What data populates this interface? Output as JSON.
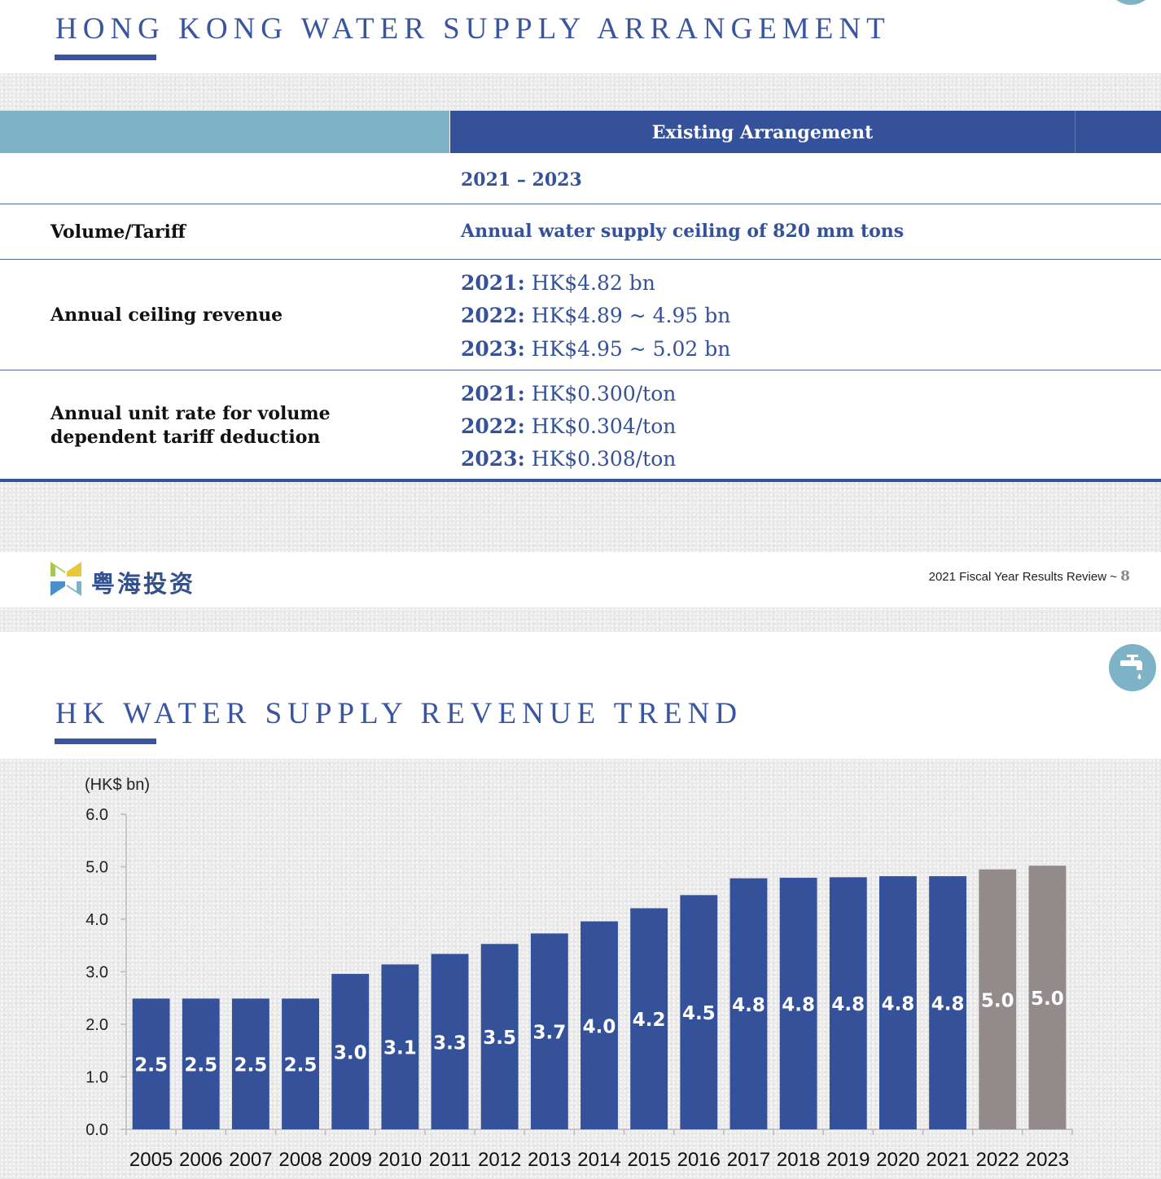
{
  "slide1": {
    "title": "HONG KONG WATER SUPPLY ARRANGEMENT",
    "table": {
      "header": "Existing Arrangement",
      "period": "2021 – 2023",
      "rows": [
        {
          "label": "Volume/Tariff",
          "value": "Annual water supply ceiling of 820 mm tons"
        },
        {
          "label": "Annual ceiling revenue",
          "lines": [
            {
              "year": "2021:",
              "value": "HK$4.82 bn"
            },
            {
              "year": "2022:",
              "value": "HK$4.89 ~ 4.95 bn"
            },
            {
              "year": "2023:",
              "value": "HK$4.95 ~ 5.02 bn"
            }
          ]
        },
        {
          "label_line1": "Annual unit rate for volume",
          "label_line2": "dependent tariff deduction",
          "lines": [
            {
              "year": "2021:",
              "value": "HK$0.300/ton"
            },
            {
              "year": "2022:",
              "value": "HK$0.304/ton"
            },
            {
              "year": "2023:",
              "value": "HK$0.308/ton"
            }
          ]
        }
      ]
    },
    "footer": {
      "brand": "粤海投资",
      "note": "2021 Fiscal Year Results Review ~ ",
      "page": "8"
    }
  },
  "slide2": {
    "title": "HK WATER SUPPLY REVENUE TREND",
    "icon": "water-tap-icon"
  },
  "colors": {
    "navy": "#34519a",
    "teal": "#7eb2c7",
    "bar_actual": "#34519a",
    "bar_projected": "#938b8b"
  },
  "chart_data": {
    "type": "bar",
    "ylabel": "(HK$ bn)",
    "ylim": [
      0,
      6.0
    ],
    "yticks": [
      "0.0",
      "1.0",
      "2.0",
      "3.0",
      "4.0",
      "5.0",
      "6.0"
    ],
    "categories": [
      "2005",
      "2006",
      "2007",
      "2008",
      "2009",
      "2010",
      "2011",
      "2012",
      "2013",
      "2014",
      "2015",
      "2016",
      "2017",
      "2018",
      "2019",
      "2020",
      "2021",
      "2022",
      "2023"
    ],
    "values": [
      2.49,
      2.49,
      2.49,
      2.49,
      2.96,
      3.14,
      3.34,
      3.53,
      3.73,
      3.96,
      4.21,
      4.46,
      4.78,
      4.79,
      4.8,
      4.82,
      4.82,
      4.95,
      5.02
    ],
    "labels": [
      "2.5",
      "2.5",
      "2.5",
      "2.5",
      "3.0",
      "3.1",
      "3.3",
      "3.5",
      "3.7",
      "4.0",
      "4.2",
      "4.5",
      "4.8",
      "4.8",
      "4.8",
      "4.8",
      "4.8",
      "5.0",
      "5.0"
    ],
    "projected": [
      false,
      false,
      false,
      false,
      false,
      false,
      false,
      false,
      false,
      false,
      false,
      false,
      false,
      false,
      false,
      false,
      false,
      true,
      true
    ],
    "grid": false,
    "legend": "none"
  }
}
